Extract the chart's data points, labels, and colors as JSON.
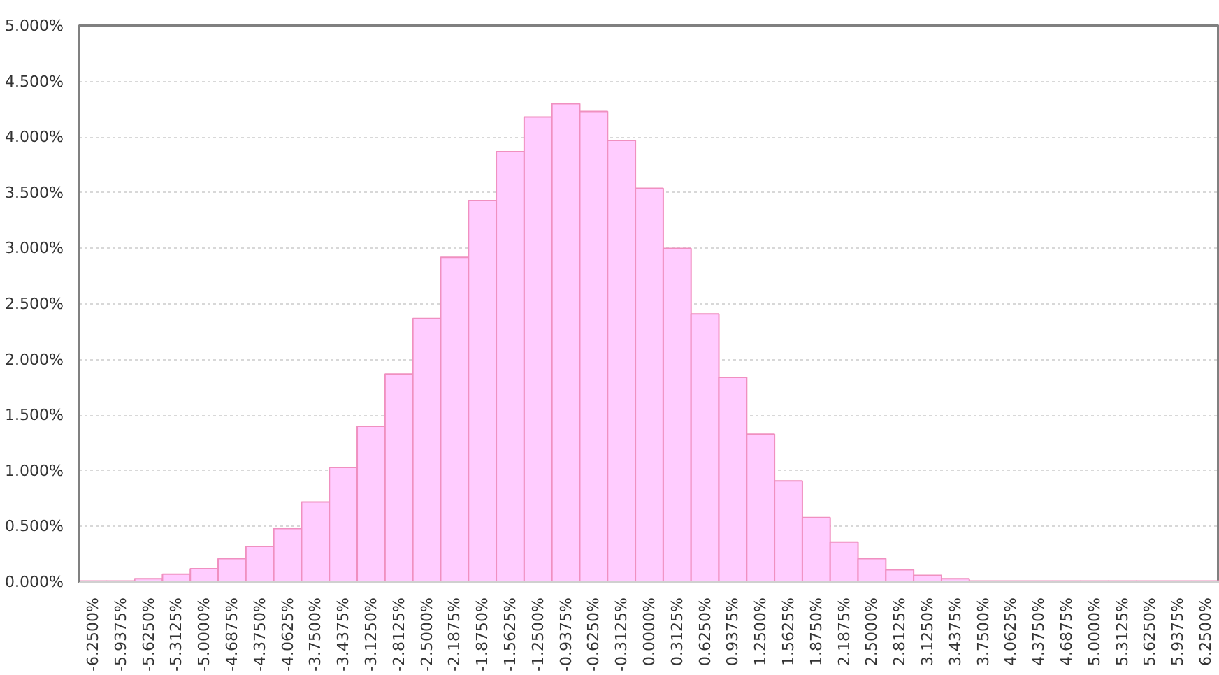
{
  "chart_data": {
    "type": "bar",
    "categories": [
      "-6.2500%",
      "-5.9375%",
      "-5.6250%",
      "-5.3125%",
      "-5.0000%",
      "-4.6875%",
      "-4.3750%",
      "-4.0625%",
      "-3.7500%",
      "-3.4375%",
      "-3.1250%",
      "-2.8125%",
      "-2.5000%",
      "-2.1875%",
      "-1.8750%",
      "-1.5625%",
      "-1.2500%",
      "-0.9375%",
      "-0.6250%",
      "-0.3125%",
      "0.0000%",
      "0.3125%",
      "0.6250%",
      "0.9375%",
      "1.2500%",
      "1.5625%",
      "1.8750%",
      "2.1875%",
      "2.5000%",
      "2.8125%",
      "3.1250%",
      "3.4375%",
      "3.7500%",
      "4.0625%",
      "4.3750%",
      "4.6875%",
      "5.0000%",
      "5.3125%",
      "5.6250%",
      "5.9375%",
      "6.2500%"
    ],
    "series": [
      {
        "color": "#ffccff",
        "values": [
          0.01,
          0.01,
          0.03,
          0.07,
          0.12,
          0.21,
          0.32,
          0.48,
          0.72,
          1.03,
          1.4,
          1.87,
          2.37,
          2.92,
          3.43,
          3.87,
          4.18,
          4.3,
          4.23,
          3.97,
          3.54,
          3.0,
          2.41,
          1.84,
          1.33,
          0.91,
          0.58,
          0.36,
          0.21,
          0.11,
          0.06,
          0.03,
          0.01,
          0.01,
          0.01,
          0.01,
          0.01,
          0.01,
          0.01,
          0.01,
          0.01
        ]
      }
    ],
    "ylim": [
      0,
      5
    ],
    "yticks": [
      {
        "value": 0,
        "label": "0.000%"
      },
      {
        "value": 0.5,
        "label": "0.500%"
      },
      {
        "value": 1,
        "label": "1.000%"
      },
      {
        "value": 1.5,
        "label": "1.500%"
      },
      {
        "value": 2,
        "label": "2.000%"
      },
      {
        "value": 2.5,
        "label": "2.500%"
      },
      {
        "value": 3,
        "label": "3.000%"
      },
      {
        "value": 3.5,
        "label": "3.500%"
      },
      {
        "value": 4,
        "label": "4.000%"
      },
      {
        "value": 4.5,
        "label": "4.500%"
      },
      {
        "value": 5,
        "label": "5.000%"
      }
    ],
    "grid": "y"
  }
}
